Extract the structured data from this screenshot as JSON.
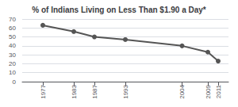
{
  "chart_data": {
    "type": "line",
    "title": "% of Indians Living on Less Than $1.90 a Day*",
    "x": [
      1977,
      1983,
      1987,
      1993,
      2004,
      2009,
      2011
    ],
    "values": [
      63,
      56,
      50,
      47,
      40,
      33,
      23
    ],
    "xlim": [
      1973,
      2013
    ],
    "xticks": [
      1977,
      1983,
      1987,
      1993,
      2004,
      2009,
      2011
    ],
    "ylim": [
      0,
      70
    ],
    "yticks": [
      0,
      10,
      20,
      30,
      40,
      50,
      60,
      70
    ],
    "color": "#555555",
    "marker": "circle",
    "grid": true
  }
}
